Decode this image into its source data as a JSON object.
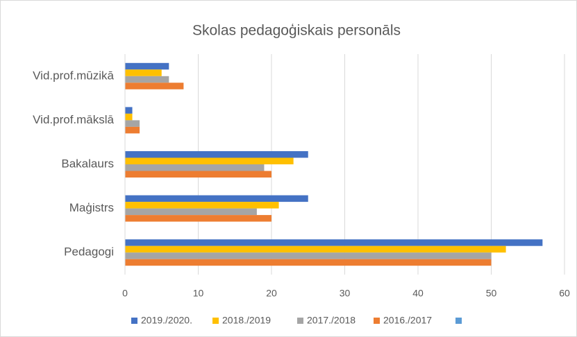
{
  "chart_data": {
    "type": "hbar",
    "title": "Skolas pedagoģiskais personāls",
    "categories": [
      "Vid.prof.mūzikā",
      "Vid.prof.mākslā",
      "Bakalaurs",
      "Maģistrs",
      "Pedagogi"
    ],
    "series": [
      {
        "name": "2019./2020.",
        "color": "#4472c4",
        "values": [
          6,
          1,
          25,
          25,
          57
        ]
      },
      {
        "name": "2018./2019",
        "color": "#ffc000",
        "values": [
          5,
          1,
          23,
          21,
          52
        ]
      },
      {
        "name": "2017./2018",
        "color": "#a5a5a5",
        "values": [
          6,
          2,
          19,
          18,
          50
        ]
      },
      {
        "name": "2016./2017",
        "color": "#ed7d31",
        "values": [
          8,
          2,
          20,
          20,
          50
        ]
      }
    ],
    "xlim": [
      0,
      60
    ],
    "xticks": [
      0,
      10,
      20,
      30,
      40,
      50,
      60
    ],
    "grid": true,
    "legend": "bottom"
  }
}
